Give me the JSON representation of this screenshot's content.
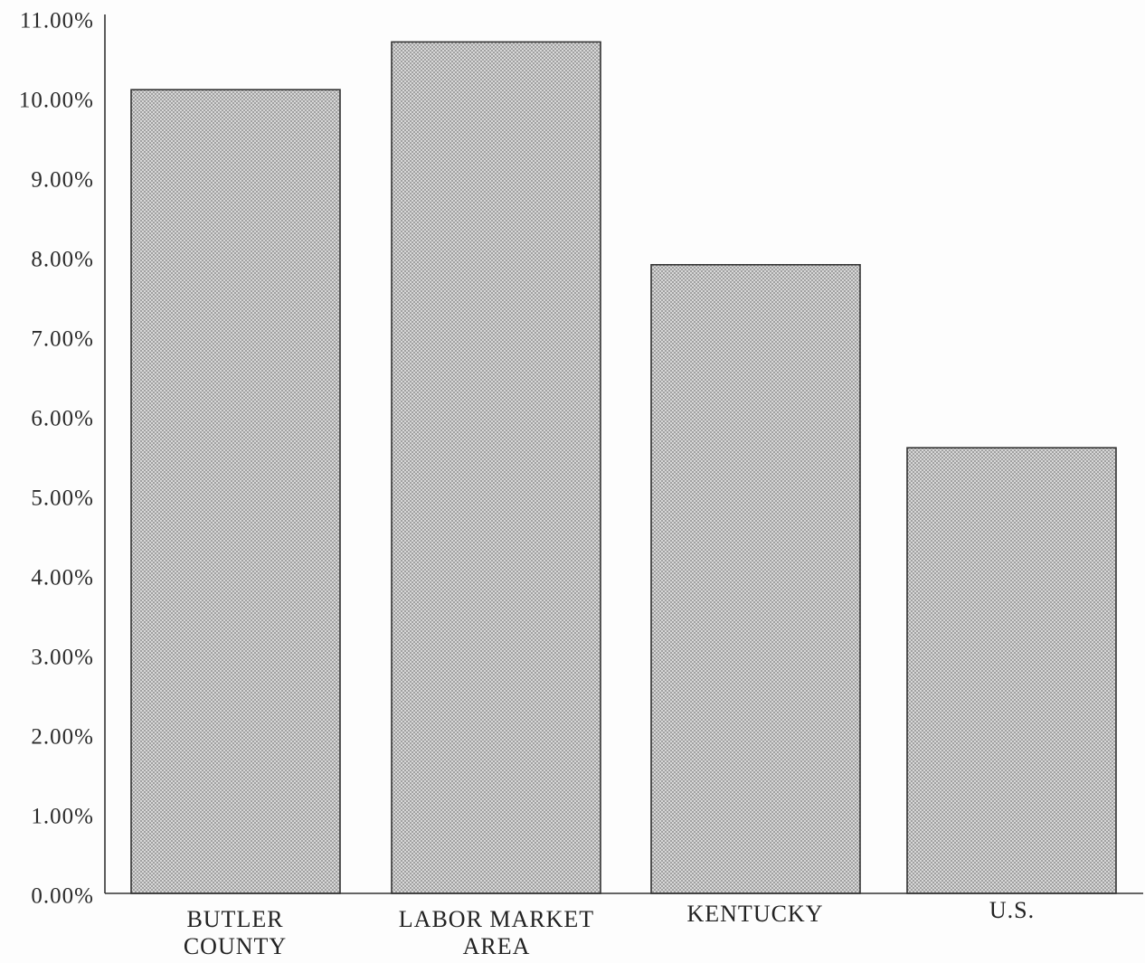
{
  "chart_data": {
    "type": "bar",
    "categories": [
      "BUTLER COUNTY",
      "LABOR MARKET AREA",
      "KENTUCKY",
      "U.S."
    ],
    "values": [
      10.1,
      10.7,
      7.9,
      5.6
    ],
    "ylim": [
      0,
      11
    ],
    "y_ticks": [
      0,
      1,
      2,
      3,
      4,
      5,
      6,
      7,
      8,
      9,
      10,
      11
    ],
    "y_tick_labels": [
      "0.00%",
      "1.00%",
      "2.00%",
      "3.00%",
      "4.00%",
      "5.00%",
      "6.00%",
      "7.00%",
      "8.00%",
      "9.00%",
      "10.00%",
      "11.00%"
    ],
    "grid": false,
    "legend": "none",
    "colors": {
      "bar_fill": "#e2e2e2",
      "bar_hatch": "#8a8a8a",
      "bar_outline": "#333333",
      "axis": "#333333"
    }
  }
}
